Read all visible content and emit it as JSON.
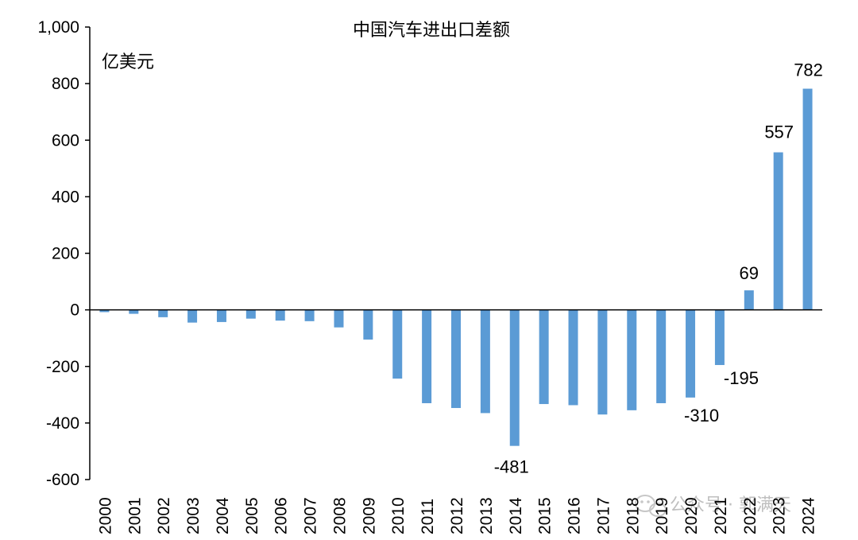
{
  "chart_data": {
    "type": "bar",
    "title": "中国汽车进出口差额",
    "ylabel": "亿美元",
    "xlabel": "",
    "ylim": [
      -600,
      1000
    ],
    "yticks": [
      1000,
      800,
      600,
      400,
      200,
      0,
      -200,
      -400,
      -600
    ],
    "ytick_labels": [
      "1,000",
      "800",
      "600",
      "400",
      "200",
      "0",
      "-200",
      "-400",
      "-600"
    ],
    "categories": [
      "2000",
      "2001",
      "2002",
      "2003",
      "2004",
      "2005",
      "2006",
      "2007",
      "2008",
      "2009",
      "2010",
      "2011",
      "2012",
      "2013",
      "2014",
      "2015",
      "2016",
      "2017",
      "2018",
      "2019",
      "2020",
      "2021",
      "2022",
      "2023",
      "2024"
    ],
    "values": [
      -8,
      -14,
      -26,
      -45,
      -43,
      -31,
      -38,
      -40,
      -62,
      -105,
      -243,
      -330,
      -347,
      -365,
      -481,
      -333,
      -337,
      -370,
      -355,
      -330,
      -310,
      -195,
      69,
      557,
      782
    ],
    "data_labels": [
      {
        "category": "2014",
        "text": "-481"
      },
      {
        "category": "2020",
        "text": "-310"
      },
      {
        "category": "2021",
        "text": "-195"
      },
      {
        "category": "2022",
        "text": "69"
      },
      {
        "category": "2023",
        "text": "557"
      },
      {
        "category": "2024",
        "text": "782"
      }
    ],
    "bar_color": "#5B9BD5",
    "grid": false,
    "legend": "none"
  },
  "watermark": {
    "text": "公众号 · 郭满天",
    "icon": "wechat-icon"
  }
}
